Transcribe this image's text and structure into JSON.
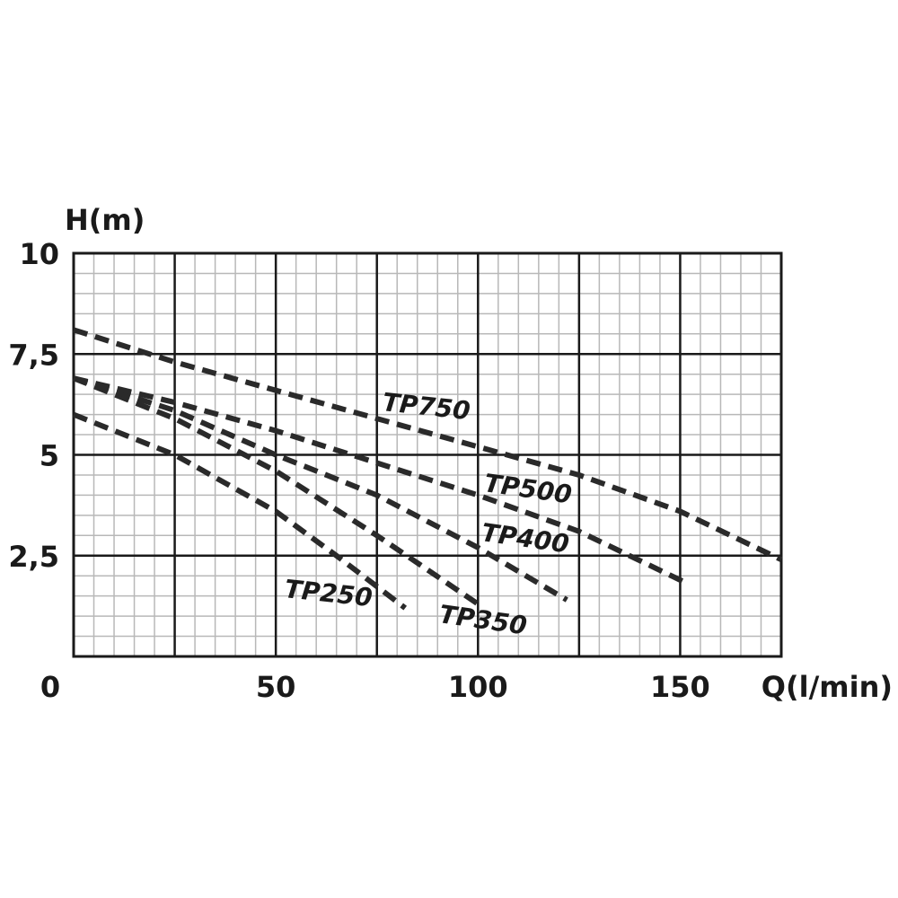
{
  "chart_data": {
    "type": "line",
    "xlabel": "Q(l/min)",
    "ylabel": "H(m)",
    "xlim": [
      0,
      175
    ],
    "ylim": [
      0,
      10
    ],
    "x_ticks": [
      {
        "value": 0,
        "label": "0"
      },
      {
        "value": 50,
        "label": "50"
      },
      {
        "value": 100,
        "label": "100"
      },
      {
        "value": 150,
        "label": "150"
      }
    ],
    "y_ticks": [
      {
        "value": 2.5,
        "label": "2,5"
      },
      {
        "value": 5,
        "label": "5"
      },
      {
        "value": 7.5,
        "label": "7,5"
      },
      {
        "value": 10,
        "label": "10"
      }
    ],
    "grid": true,
    "line_style": "dashed",
    "line_color": "#2a2a2a",
    "series": [
      {
        "name": "TP250",
        "x": [
          0,
          25,
          50,
          65,
          82
        ],
        "y": [
          6.0,
          5.0,
          3.6,
          2.5,
          1.2
        ]
      },
      {
        "name": "TP350",
        "x": [
          0,
          25,
          50,
          75,
          100
        ],
        "y": [
          6.9,
          5.9,
          4.6,
          3.0,
          1.3
        ]
      },
      {
        "name": "TP400",
        "x": [
          0,
          25,
          50,
          75,
          100,
          122
        ],
        "y": [
          6.9,
          6.1,
          5.0,
          4.0,
          2.7,
          1.4
        ]
      },
      {
        "name": "TP500",
        "x": [
          0,
          25,
          50,
          75,
          100,
          125,
          152
        ],
        "y": [
          6.9,
          6.3,
          5.6,
          4.8,
          4.0,
          3.1,
          1.8
        ]
      },
      {
        "name": "TP750",
        "x": [
          0,
          25,
          50,
          75,
          100,
          125,
          150,
          175
        ],
        "y": [
          8.1,
          7.3,
          6.6,
          5.9,
          5.2,
          4.5,
          3.6,
          2.4
        ]
      }
    ]
  }
}
